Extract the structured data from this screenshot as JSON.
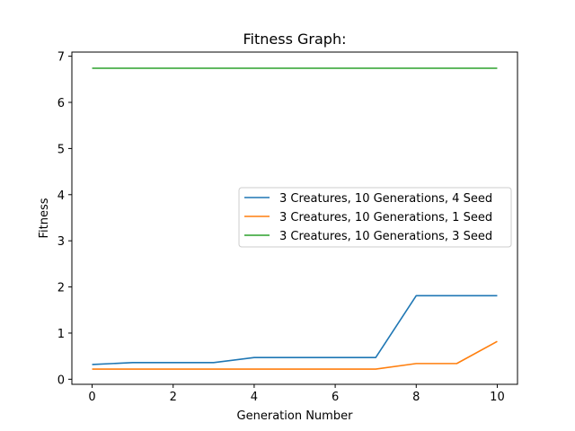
{
  "chart_data": {
    "type": "line",
    "title": "Fitness Graph:",
    "xlabel": "Generation Number",
    "ylabel": "Fitness",
    "xlim": [
      -0.5,
      10.5
    ],
    "ylim": [
      -0.11,
      7.09
    ],
    "xticks": [
      0,
      2,
      4,
      6,
      8,
      10
    ],
    "xtick_labels": [
      "0",
      "2",
      "4",
      "6",
      "8",
      "10"
    ],
    "yticks": [
      0,
      1,
      2,
      3,
      4,
      5,
      6,
      7
    ],
    "ytick_labels": [
      "0",
      "1",
      "2",
      "3",
      "4",
      "5",
      "6",
      "7"
    ],
    "grid": false,
    "legend_position": "center-right",
    "x": [
      0,
      1,
      2,
      3,
      4,
      5,
      6,
      7,
      8,
      9,
      10
    ],
    "series": [
      {
        "name": "3 Creatures, 10 Generations, 4 Seed",
        "color": "#1f77b4",
        "values": [
          0.32,
          0.36,
          0.36,
          0.36,
          0.47,
          0.47,
          0.47,
          0.47,
          1.81,
          1.81,
          1.81
        ]
      },
      {
        "name": "3 Creatures, 10 Generations, 1 Seed",
        "color": "#ff7f0e",
        "values": [
          0.22,
          0.22,
          0.22,
          0.22,
          0.22,
          0.22,
          0.22,
          0.22,
          0.34,
          0.34,
          0.82
        ]
      },
      {
        "name": "3 Creatures, 10 Generations, 3 Seed",
        "color": "#2ca02c",
        "values": [
          6.74,
          6.74,
          6.74,
          6.74,
          6.74,
          6.74,
          6.74,
          6.74,
          6.74,
          6.74,
          6.74
        ]
      }
    ]
  }
}
